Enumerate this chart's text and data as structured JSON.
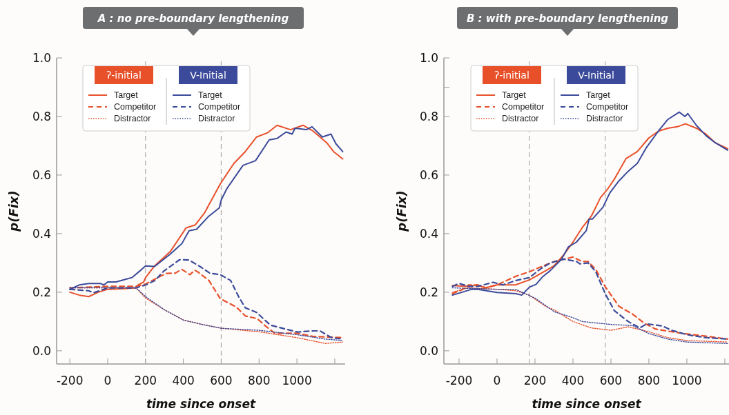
{
  "chart_data": [
    {
      "type": "line",
      "title": "A : no pre-boundary lengthening",
      "xlabel": "time since onset",
      "ylabel": "p(Fix)",
      "xlim": [
        -270,
        1255
      ],
      "ylim": [
        -0.045,
        1.0
      ],
      "xticks": [
        -200,
        0,
        200,
        400,
        600,
        800,
        1000,
        {
          "value": 1200,
          "label": null
        }
      ],
      "yticks": [
        {
          "value": 0,
          "label": "0.0"
        },
        0.2,
        0.4,
        0.6,
        0.8,
        {
          "value": 1,
          "label": "1.0"
        }
      ],
      "grid": false,
      "legend": "top left",
      "annotations": [
        "ʔ-initial",
        "V-Initial"
      ],
      "ref_lines": [
        {
          "axis": "x",
          "value": 200,
          "color": "#aaaaaa",
          "line_style": "dashed"
        },
        {
          "axis": "x",
          "value": 600,
          "color": "#aaaaaa",
          "line_style": "dashed"
        }
      ],
      "series": [
        {
          "name": "Target",
          "color": "#e8502a",
          "line_style": "solid",
          "x": [
            -200,
            -150,
            -100,
            -50,
            0,
            100,
            150,
            160,
            190,
            200,
            248,
            332,
            415,
            463,
            511,
            595,
            667,
            727,
            787,
            847,
            895,
            966,
            1032,
            1086,
            1158,
            1194,
            1242
          ],
          "values": [
            0.2,
            0.19,
            0.185,
            0.2,
            0.21,
            0.213,
            0.215,
            0.225,
            0.235,
            0.25,
            0.29,
            0.34,
            0.42,
            0.43,
            0.47,
            0.57,
            0.64,
            0.68,
            0.73,
            0.745,
            0.77,
            0.755,
            0.77,
            0.75,
            0.71,
            0.68,
            0.655
          ]
        },
        {
          "name": "Competitor",
          "color": "#e8502a",
          "line_style": "dashed",
          "x": [
            -200,
            0,
            150,
            200,
            250,
            308,
            356,
            392,
            434,
            460,
            475,
            535,
            595,
            679,
            727,
            790,
            835,
            883,
            1000,
            1086,
            1242
          ],
          "values": [
            0.215,
            0.22,
            0.22,
            0.228,
            0.245,
            0.264,
            0.265,
            0.278,
            0.26,
            0.275,
            0.27,
            0.24,
            0.178,
            0.15,
            0.119,
            0.11,
            0.084,
            0.06,
            0.06,
            0.049,
            0.045
          ]
        },
        {
          "name": "Distractor",
          "color": "#e8502a",
          "line_style": "dotted",
          "x": [
            -200,
            0,
            150,
            200,
            300,
            400,
            500,
            600,
            800,
            1000,
            1150,
            1242
          ],
          "values": [
            0.215,
            0.215,
            0.215,
            0.18,
            0.14,
            0.105,
            0.09,
            0.077,
            0.065,
            0.045,
            0.025,
            0.03
          ]
        },
        {
          "name": "Target",
          "color": "#3b4a9a",
          "line_style": "solid",
          "x": [
            -200,
            -150,
            -100,
            -40,
            -20,
            0,
            44,
            100,
            128,
            176,
            200,
            248,
            330,
            392,
            430,
            470,
            535,
            590,
            600,
            631,
            715,
            781,
            853,
            895,
            943,
            975,
            990,
            1050,
            1080,
            1134,
            1180,
            1206,
            1242
          ],
          "values": [
            0.21,
            0.225,
            0.23,
            0.23,
            0.225,
            0.235,
            0.235,
            0.245,
            0.25,
            0.276,
            0.29,
            0.288,
            0.33,
            0.366,
            0.41,
            0.415,
            0.46,
            0.488,
            0.515,
            0.555,
            0.633,
            0.649,
            0.72,
            0.725,
            0.747,
            0.74,
            0.76,
            0.755,
            0.765,
            0.73,
            0.74,
            0.707,
            0.68
          ]
        },
        {
          "name": "Competitor",
          "color": "#3b4a9a",
          "line_style": "dashed",
          "x": [
            -200,
            -100,
            -75,
            0,
            150,
            202,
            250,
            296,
            380,
            430,
            487,
            540,
            595,
            650,
            691,
            727,
            787,
            859,
            930,
            1002,
            1086,
            1122,
            1182,
            1242
          ],
          "values": [
            0.21,
            0.205,
            0.198,
            0.215,
            0.215,
            0.225,
            0.24,
            0.272,
            0.311,
            0.31,
            0.288,
            0.265,
            0.26,
            0.24,
            0.186,
            0.147,
            0.131,
            0.088,
            0.076,
            0.064,
            0.068,
            0.068,
            0.045,
            0.04
          ]
        },
        {
          "name": "Distractor",
          "color": "#3b4a9a",
          "line_style": "dotted",
          "x": [
            -200,
            0,
            150,
            200,
            300,
            400,
            500,
            600,
            800,
            1000,
            1150,
            1242
          ],
          "values": [
            0.215,
            0.215,
            0.215,
            0.185,
            0.14,
            0.105,
            0.09,
            0.077,
            0.07,
            0.055,
            0.04,
            0.035
          ]
        }
      ]
    },
    {
      "type": "line",
      "title": "B : with pre-boundary lengthening",
      "xlabel": "time since onset",
      "ylabel": "p(Fix)",
      "xlim": [
        -280,
        1222
      ],
      "ylim": [
        -0.045,
        1.0
      ],
      "xticks": [
        -200,
        0,
        200,
        400,
        600,
        800,
        1000,
        {
          "value": 1200,
          "label": null
        }
      ],
      "yticks": [
        {
          "value": 0,
          "label": "0.0"
        },
        0.2,
        0.4,
        0.6,
        0.8,
        {
          "value": 0.9,
          "label": null
        },
        {
          "value": 1,
          "label": "1.0"
        }
      ],
      "grid": false,
      "legend": "top left",
      "annotations": [
        "ʔ-initial",
        "V-Initial"
      ],
      "ref_lines": [
        {
          "axis": "x",
          "value": 170,
          "color": "#aaaaaa",
          "line_style": "dashed"
        },
        {
          "axis": "x",
          "value": 570,
          "color": "#aaaaaa",
          "line_style": "dashed"
        }
      ],
      "series": [
        {
          "name": "Target",
          "color": "#e8502a",
          "line_style": "solid",
          "x": [
            -235,
            -150,
            -109,
            -60,
            0,
            97,
            170,
            255,
            300,
            352,
            400,
            448,
            497,
            545,
            580,
            618,
            679,
            739,
            800,
            850,
            900,
            950,
            993,
            1050,
            1100,
            1150,
            1215
          ],
          "values": [
            0.223,
            0.22,
            0.225,
            0.215,
            0.225,
            0.225,
            0.242,
            0.273,
            0.29,
            0.328,
            0.371,
            0.42,
            0.46,
            0.523,
            0.55,
            0.586,
            0.656,
            0.68,
            0.727,
            0.75,
            0.76,
            0.765,
            0.775,
            0.76,
            0.74,
            0.71,
            0.69
          ]
        },
        {
          "name": "Competitor",
          "color": "#e8502a",
          "line_style": "dashed",
          "x": [
            -235,
            -180,
            -150,
            -100,
            -60,
            0,
            97,
            170,
            255,
            303,
            400,
            448,
            480,
            521,
            570,
            642,
            715,
            776,
            836,
            982,
            1100,
            1215
          ],
          "values": [
            0.195,
            0.21,
            0.225,
            0.225,
            0.215,
            0.225,
            0.254,
            0.27,
            0.293,
            0.305,
            0.32,
            0.305,
            0.305,
            0.277,
            0.219,
            0.152,
            0.125,
            0.094,
            0.074,
            0.059,
            0.05,
            0.04
          ]
        },
        {
          "name": "Distractor",
          "color": "#e8502a",
          "line_style": "dotted",
          "x": [
            -235,
            -150,
            0,
            100,
            170,
            255,
            300,
            400,
            497,
            600,
            691,
            800,
            900,
            1000,
            1215
          ],
          "values": [
            0.2,
            0.215,
            0.21,
            0.205,
            0.19,
            0.152,
            0.14,
            0.1,
            0.078,
            0.07,
            0.082,
            0.065,
            0.045,
            0.035,
            0.03
          ]
        },
        {
          "name": "Target",
          "color": "#3b4a9a",
          "line_style": "solid",
          "x": [
            -235,
            -133,
            -100,
            0,
            100,
            130,
            170,
            206,
            242,
            279,
            339,
            376,
            418,
            470,
            485,
            503,
            558,
            594,
            642,
            691,
            739,
            788,
            850,
            900,
            960,
            990,
            1005,
            1050,
            1100,
            1150,
            1215
          ],
          "values": [
            0.19,
            0.21,
            0.21,
            0.199,
            0.195,
            0.19,
            0.217,
            0.227,
            0.254,
            0.273,
            0.312,
            0.355,
            0.371,
            0.41,
            0.45,
            0.45,
            0.49,
            0.539,
            0.58,
            0.613,
            0.64,
            0.695,
            0.75,
            0.79,
            0.815,
            0.8,
            0.81,
            0.77,
            0.735,
            0.71,
            0.685
          ]
        },
        {
          "name": "Competitor",
          "color": "#3b4a9a",
          "line_style": "dashed",
          "x": [
            -235,
            -200,
            -150,
            -100,
            -20,
            30,
            100,
            170,
            230,
            280,
            352,
            418,
            436,
            480,
            520,
            570,
            618,
            691,
            752,
            788,
            870,
            921,
            1000,
            1100,
            1215
          ],
          "values": [
            0.22,
            0.23,
            0.22,
            0.22,
            0.234,
            0.225,
            0.24,
            0.25,
            0.28,
            0.3,
            0.313,
            0.305,
            0.297,
            0.3,
            0.27,
            0.195,
            0.137,
            0.1,
            0.078,
            0.092,
            0.085,
            0.07,
            0.055,
            0.045,
            0.04
          ]
        },
        {
          "name": "Distractor",
          "color": "#3b4a9a",
          "line_style": "dotted",
          "x": [
            -235,
            0,
            97,
            200,
            303,
            400,
            448,
            600,
            715,
            800,
            900,
            1000,
            1215
          ],
          "values": [
            0.215,
            0.21,
            0.21,
            0.18,
            0.133,
            0.113,
            0.1,
            0.09,
            0.086,
            0.059,
            0.04,
            0.03,
            0.025
          ]
        }
      ]
    }
  ]
}
